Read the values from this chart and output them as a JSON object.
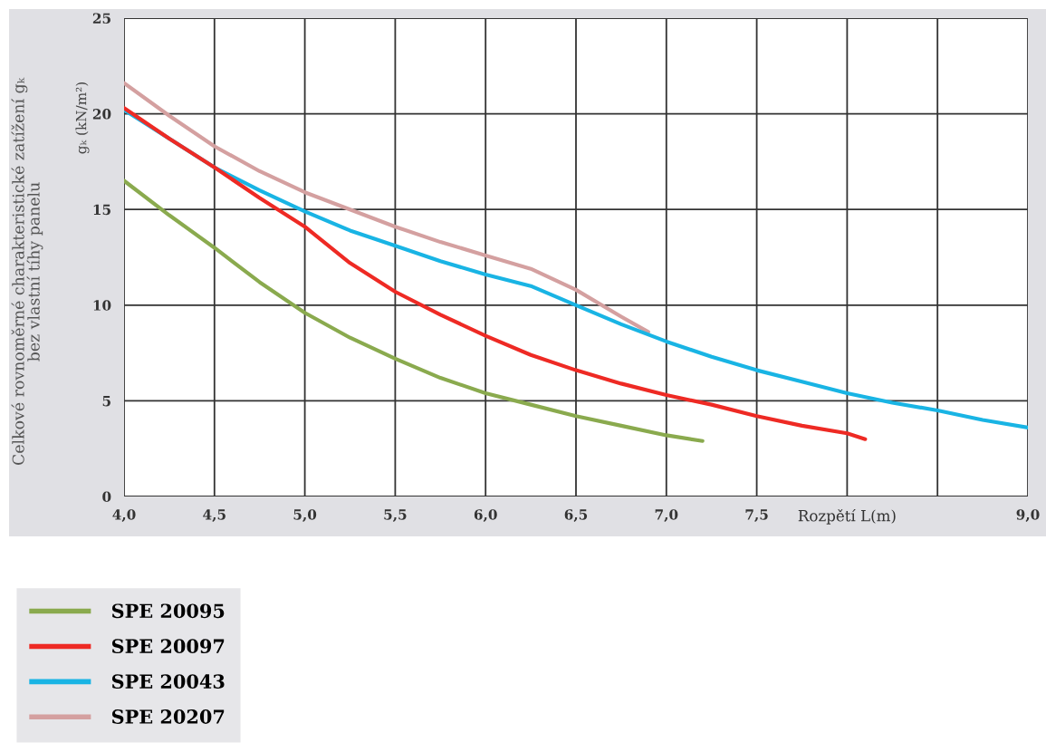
{
  "chart_data": {
    "type": "line",
    "ylabel": "Celkové rovnoměrné charakteristické zatížení gₖ\nbez vlastní tíhy panelu",
    "annotations": [
      "gₖ (kN/m²)"
    ],
    "xlim": [
      4.0,
      9.0
    ],
    "xticks": [
      {
        "value": 4.0,
        "label": "4,0"
      },
      {
        "value": 4.5,
        "label": "4,5"
      },
      {
        "value": 5.0,
        "label": "5,0"
      },
      {
        "value": 5.5,
        "label": "5,5"
      },
      {
        "value": 6.0,
        "label": "6,0"
      },
      {
        "value": 6.5,
        "label": "6,5"
      },
      {
        "value": 7.0,
        "label": "7,0"
      },
      {
        "value": 7.5,
        "label": "7,5"
      },
      {
        "value": 8.0,
        "label": "Rozpětí L(m)"
      },
      {
        "value": 8.5,
        "label": null
      },
      {
        "value": 9.0,
        "label": "9,0"
      }
    ],
    "ylim": [
      0,
      25
    ],
    "yticks": [
      0,
      5,
      10,
      15,
      20,
      25
    ],
    "grid": true,
    "legend": "bottom left",
    "marker": "none",
    "line_style": "solid",
    "series": [
      {
        "name": "SPE 20095",
        "color": "#8aaa4e",
        "x": [
          4.0,
          4.25,
          4.5,
          4.75,
          5.0,
          5.25,
          5.5,
          5.75,
          6.0,
          6.25,
          6.5,
          6.75,
          7.0,
          7.2
        ],
        "values": [
          16.5,
          14.7,
          13.0,
          11.2,
          9.6,
          8.3,
          7.2,
          6.2,
          5.4,
          4.8,
          4.2,
          3.7,
          3.2,
          2.9
        ]
      },
      {
        "name": "SPE 20097",
        "color": "#ee2a24",
        "x": [
          4.0,
          4.25,
          4.5,
          4.75,
          5.0,
          5.25,
          5.5,
          5.75,
          6.0,
          6.25,
          6.5,
          6.75,
          7.0,
          7.25,
          7.5,
          7.75,
          8.0,
          8.1
        ],
        "values": [
          20.3,
          18.7,
          17.2,
          15.6,
          14.1,
          12.2,
          10.7,
          9.5,
          8.4,
          7.4,
          6.6,
          5.9,
          5.3,
          4.8,
          4.2,
          3.7,
          3.3,
          3.0
        ]
      },
      {
        "name": "SPE 20043",
        "color": "#19b4e4",
        "x": [
          4.0,
          4.5,
          4.75,
          5.0,
          5.25,
          5.5,
          5.75,
          6.0,
          6.25,
          6.5,
          6.75,
          7.0,
          7.25,
          7.5,
          7.75,
          8.0,
          8.25,
          8.5,
          8.75,
          9.0
        ],
        "values": [
          20.2,
          17.2,
          16.0,
          14.9,
          13.9,
          13.1,
          12.3,
          11.6,
          11.0,
          10.0,
          9.0,
          8.1,
          7.3,
          6.6,
          6.0,
          5.4,
          4.9,
          4.5,
          4.0,
          3.6
        ]
      },
      {
        "name": "SPE 20207",
        "color": "#d4a0a0",
        "x": [
          4.0,
          4.25,
          4.5,
          4.75,
          5.0,
          5.25,
          5.5,
          5.75,
          6.0,
          6.25,
          6.5,
          6.75,
          6.9
        ],
        "values": [
          21.6,
          19.9,
          18.3,
          17.0,
          15.9,
          15.0,
          14.1,
          13.3,
          12.6,
          11.9,
          10.8,
          9.4,
          8.6
        ]
      }
    ]
  }
}
